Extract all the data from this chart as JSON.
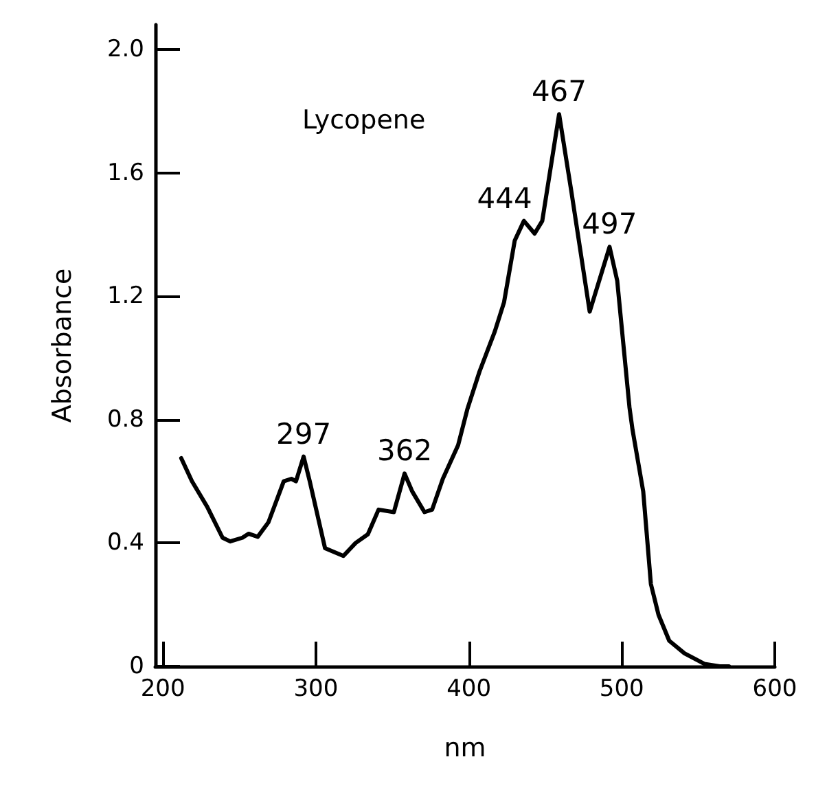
{
  "chart_data": {
    "type": "line",
    "xlabel": "nm",
    "ylabel": "Absorbance",
    "xlim": [
      195,
      600
    ],
    "xticks": [
      200,
      300,
      400,
      500,
      600
    ],
    "ylim": [
      0,
      2.08
    ],
    "yticks": [
      0,
      0.4,
      0.8,
      1.2,
      1.6,
      {
        "value": 2,
        "label": "2.0"
      }
    ],
    "grid": false,
    "legend": false,
    "marker": "none",
    "line_style": "solid",
    "annotations": [
      {
        "text": "297",
        "x": 292,
        "y": 0.68
      },
      {
        "text": "362",
        "x": 358,
        "y": 0.625
      },
      {
        "text": "444",
        "x": 436,
        "y": 1.444
      },
      {
        "text": "467",
        "x": 459,
        "y": 1.79
      },
      {
        "text": "497",
        "x": 492,
        "y": 1.36
      }
    ],
    "x": [
      212,
      219,
      229,
      239,
      244,
      252,
      256,
      262,
      269,
      279,
      284,
      287,
      292,
      296,
      306,
      318,
      326,
      334,
      341,
      351,
      358,
      363,
      371,
      376,
      383,
      393,
      399,
      407,
      417,
      423,
      430,
      436,
      443,
      448,
      459,
      467,
      479,
      492,
      497,
      505,
      507,
      514,
      519,
      524,
      531,
      541,
      554,
      564,
      570
    ],
    "series": [
      {
        "name": "Lycopene",
        "color": "#000000",
        "values": [
          0.675,
          0.6,
          0.517,
          0.417,
          0.405,
          0.417,
          0.43,
          0.42,
          0.467,
          0.6,
          0.608,
          0.6,
          0.68,
          0.6,
          0.383,
          0.358,
          0.4,
          0.428,
          0.508,
          0.5,
          0.625,
          0.567,
          0.5,
          0.508,
          0.608,
          0.717,
          0.833,
          0.956,
          1.086,
          1.18,
          1.38,
          1.444,
          1.403,
          1.444,
          1.79,
          1.54,
          1.15,
          1.36,
          1.25,
          0.84,
          0.767,
          0.567,
          0.267,
          0.167,
          0.083,
          0.042,
          0.008,
          0,
          0
        ]
      }
    ]
  }
}
